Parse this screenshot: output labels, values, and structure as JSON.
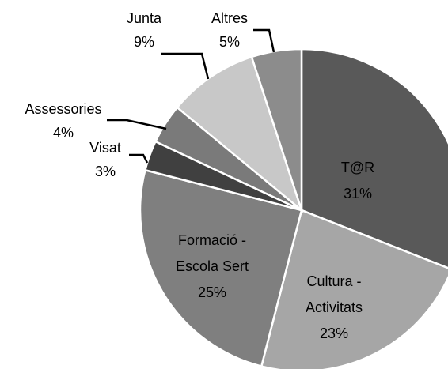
{
  "chart_data": {
    "type": "pie",
    "categories": [
      "T@R",
      "Cultura - Activitats",
      "Formació - Escola Sert",
      "Visat",
      "Assessories",
      "Junta",
      "Altres"
    ],
    "values": [
      31,
      23,
      25,
      3,
      4,
      9,
      5
    ],
    "value_labels": [
      "31%",
      "23%",
      "25%",
      "3%",
      "4%",
      "9%",
      "5%"
    ],
    "colors": [
      "#595959",
      "#a6a6a6",
      "#7f7f7f",
      "#404040",
      "#7a7a7a",
      "#c8c8c8",
      "#8c8c8c"
    ]
  }
}
